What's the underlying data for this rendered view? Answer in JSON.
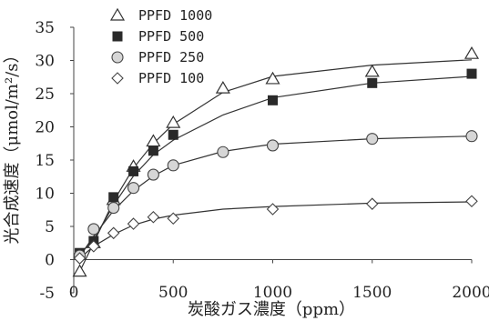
{
  "chart_data": {
    "type": "scatter",
    "title": "",
    "xlabel": "炭酸ガス濃度（ppm）",
    "ylabel": "光合成速度（μmol/m²/s）",
    "xlim": [
      0,
      2000
    ],
    "ylim": [
      -5,
      35
    ],
    "x_ticks": [
      0,
      500,
      1000,
      1500,
      2000
    ],
    "y_ticks": [
      -5,
      0,
      5,
      10,
      15,
      20,
      25,
      30,
      35
    ],
    "grid": false,
    "legend_position": "top-left",
    "series": [
      {
        "name": "PPFD 1000",
        "marker": "open-triangle",
        "points": [
          [
            30,
            -1.8
          ],
          [
            100,
            2.5
          ],
          [
            200,
            9.0
          ],
          [
            300,
            14.0
          ],
          [
            400,
            17.8
          ],
          [
            500,
            20.6
          ],
          [
            750,
            25.8
          ],
          [
            1000,
            27.2
          ],
          [
            1500,
            28.3
          ],
          [
            2000,
            31.0
          ]
        ],
        "fit": [
          [
            30,
            -1.8
          ],
          [
            100,
            2.5
          ],
          [
            200,
            8.8
          ],
          [
            300,
            13.8
          ],
          [
            400,
            17.5
          ],
          [
            500,
            20.4
          ],
          [
            750,
            25.2
          ],
          [
            1000,
            27.6
          ],
          [
            1500,
            29.3
          ],
          [
            2000,
            30.1
          ]
        ]
      },
      {
        "name": "PPFD 500",
        "marker": "filled-square",
        "points": [
          [
            30,
            1.0
          ],
          [
            100,
            2.8
          ],
          [
            200,
            9.4
          ],
          [
            300,
            13.3
          ],
          [
            400,
            16.4
          ],
          [
            500,
            18.8
          ],
          [
            1000,
            24.0
          ],
          [
            1500,
            26.6
          ],
          [
            2000,
            28.0
          ]
        ],
        "fit": [
          [
            30,
            0.8
          ],
          [
            100,
            3.0
          ],
          [
            200,
            8.2
          ],
          [
            300,
            12.6
          ],
          [
            400,
            15.8
          ],
          [
            500,
            18.0
          ],
          [
            750,
            21.8
          ],
          [
            1000,
            24.4
          ],
          [
            1500,
            26.6
          ],
          [
            2000,
            27.6
          ]
        ]
      },
      {
        "name": "PPFD 250",
        "marker": "open-circle",
        "points": [
          [
            30,
            0.6
          ],
          [
            100,
            4.6
          ],
          [
            200,
            7.8
          ],
          [
            300,
            10.8
          ],
          [
            400,
            12.8
          ],
          [
            500,
            14.2
          ],
          [
            750,
            16.2
          ],
          [
            1000,
            17.2
          ],
          [
            1500,
            18.2
          ],
          [
            2000,
            18.6
          ]
        ],
        "fit": [
          [
            30,
            0.5
          ],
          [
            100,
            3.5
          ],
          [
            200,
            7.4
          ],
          [
            300,
            10.4
          ],
          [
            400,
            12.6
          ],
          [
            500,
            14.2
          ],
          [
            750,
            16.3
          ],
          [
            1000,
            17.4
          ],
          [
            1500,
            18.2
          ],
          [
            2000,
            18.6
          ]
        ]
      },
      {
        "name": "PPFD 100",
        "marker": "open-diamond",
        "points": [
          [
            30,
            0.2
          ],
          [
            100,
            2.0
          ],
          [
            200,
            4.0
          ],
          [
            300,
            5.4
          ],
          [
            400,
            6.4
          ],
          [
            500,
            6.2
          ],
          [
            1000,
            7.6
          ],
          [
            1500,
            8.4
          ],
          [
            2000,
            8.8
          ]
        ],
        "fit": [
          [
            30,
            0.2
          ],
          [
            100,
            2.0
          ],
          [
            200,
            3.8
          ],
          [
            300,
            5.2
          ],
          [
            400,
            6.1
          ],
          [
            500,
            6.7
          ],
          [
            750,
            7.6
          ],
          [
            1000,
            8.0
          ],
          [
            1500,
            8.5
          ],
          [
            2000,
            8.7
          ]
        ]
      }
    ]
  }
}
